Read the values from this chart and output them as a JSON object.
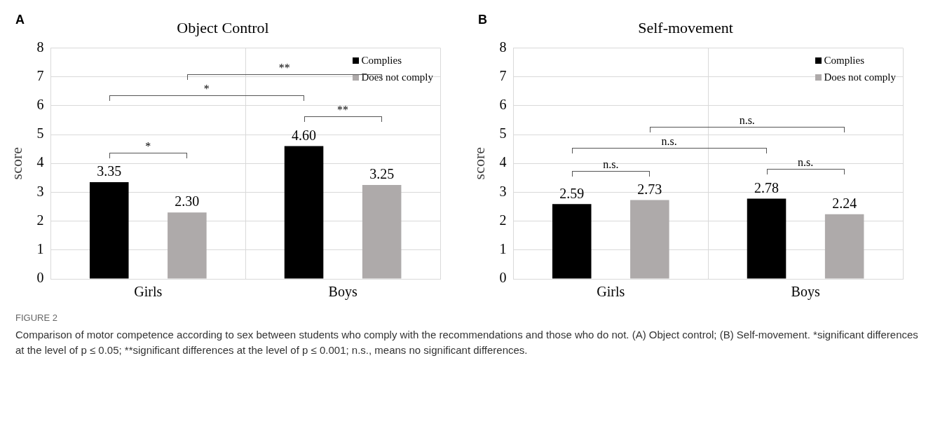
{
  "chart_data": [
    {
      "type": "bar",
      "title": "Object Control",
      "subtitle": "A",
      "ylabel": "score",
      "categories": [
        "Girls",
        "Boys"
      ],
      "series": [
        {
          "name": "Complies",
          "color": "#000000",
          "values": [
            3.35,
            4.6
          ],
          "value_labels": [
            "3.35",
            "4.60"
          ]
        },
        {
          "name": "Does not comply",
          "color": "#aeaaaa",
          "values": [
            2.3,
            3.25
          ],
          "value_labels": [
            "2.30",
            "3.25"
          ]
        }
      ],
      "ylim": [
        0,
        8
      ],
      "yticks": [
        0,
        1,
        2,
        3,
        4,
        5,
        6,
        7,
        8
      ],
      "grid": true,
      "legend": "top right",
      "annotations": [
        "*",
        "*",
        "**",
        "**"
      ]
    },
    {
      "type": "bar",
      "title": "Self-movement",
      "subtitle": "B",
      "ylabel": "score",
      "categories": [
        "Girls",
        "Boys"
      ],
      "series": [
        {
          "name": "Complies",
          "color": "#000000",
          "values": [
            2.59,
            2.78
          ],
          "value_labels": [
            "2.59",
            "2.78"
          ]
        },
        {
          "name": "Does not comply",
          "color": "#aeaaaa",
          "values": [
            2.73,
            2.24
          ],
          "value_labels": [
            "2.73",
            "2.24"
          ]
        }
      ],
      "ylim": [
        0,
        8
      ],
      "yticks": [
        0,
        1,
        2,
        3,
        4,
        5,
        6,
        7,
        8
      ],
      "grid": true,
      "legend": "top right",
      "annotations": [
        "n.s.",
        "n.s.",
        "n.s.",
        "n.s."
      ]
    },
    {
      "type": "other",
      "title": "FIGURE 2",
      "annotations": [
        "Comparison of motor competence according to sex between students who comply with the recommendations and those who do not. (A) Object control; (B) Self-movement. *significant differences at the level of p ≤ 0.05; **significant differences at the level of p ≤ 0.001; n.s., means no significant differences."
      ]
    }
  ]
}
